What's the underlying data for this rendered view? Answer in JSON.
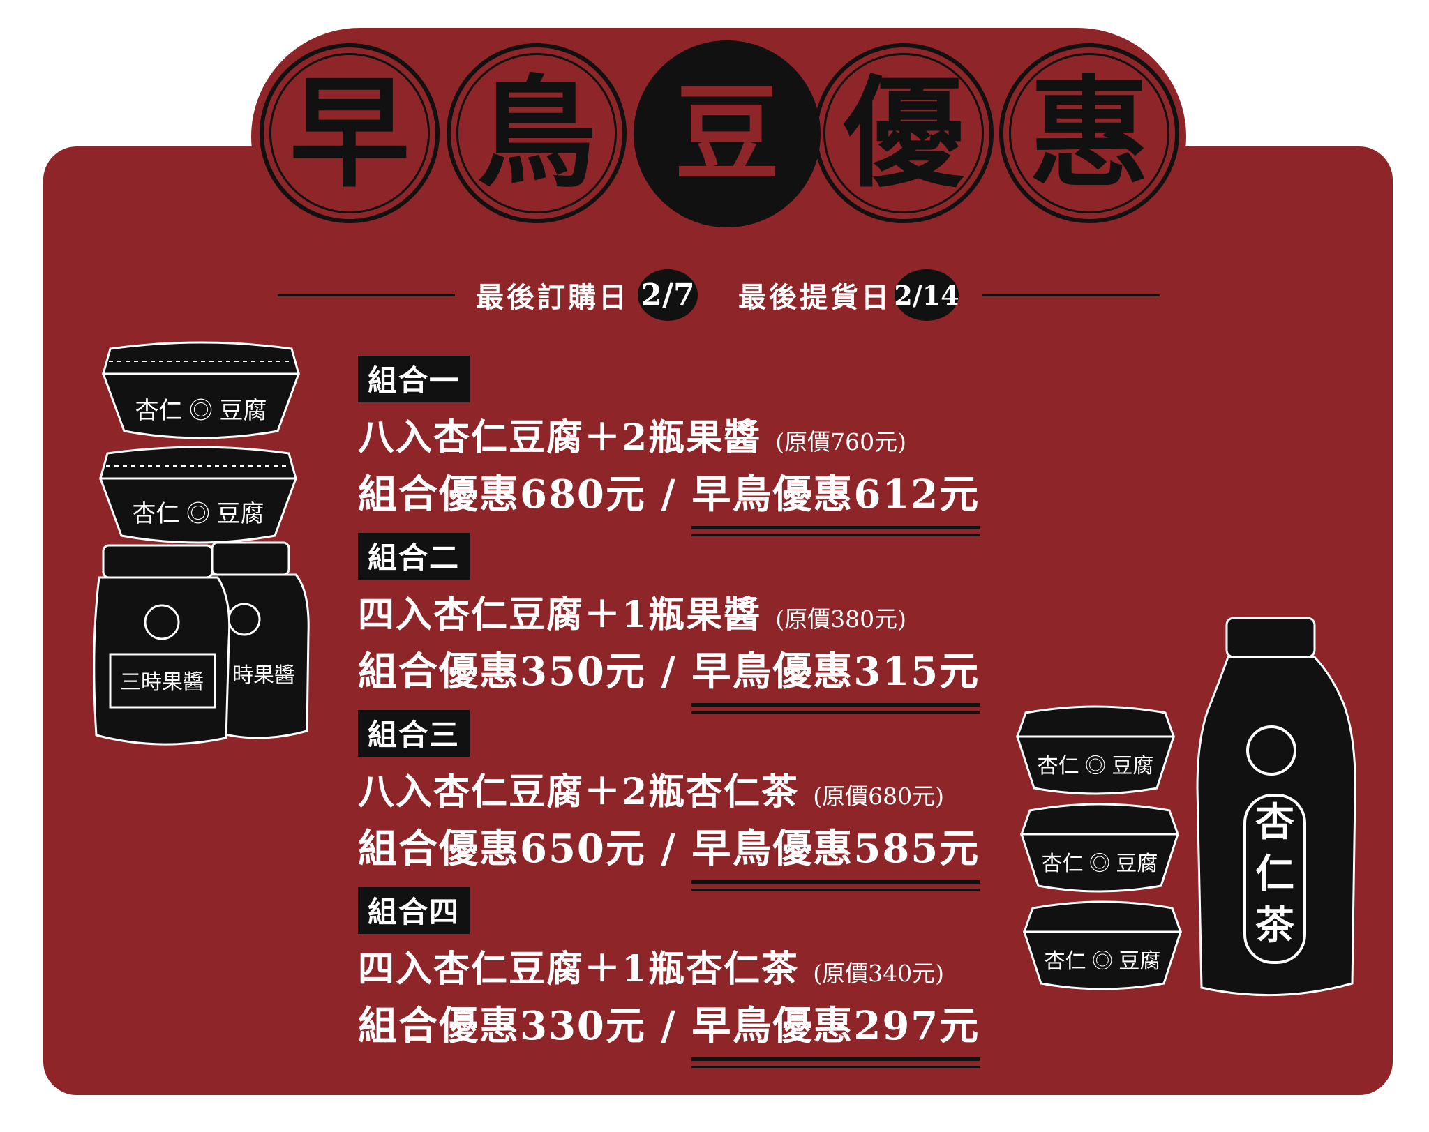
{
  "title": {
    "chars": [
      "早",
      "鳥",
      "豆",
      "優",
      "惠"
    ],
    "logo_char": "豆"
  },
  "dates": {
    "order_label": "最後訂購日",
    "order_date": "2/7",
    "pickup_label": "最後提貨日",
    "pickup_date": "2/14"
  },
  "combos": [
    {
      "tag": "組合一",
      "items": "八入杏仁豆腐＋2瓶果醬",
      "original": "(原價760元)",
      "combo_price": "組合優惠680元",
      "separator": " / ",
      "early_price": "早鳥優惠612元"
    },
    {
      "tag": "組合二",
      "items": "四入杏仁豆腐＋1瓶果醬",
      "original": "(原價380元)",
      "combo_price": "組合優惠350元",
      "separator": " / ",
      "early_price": "早鳥優惠315元"
    },
    {
      "tag": "組合三",
      "items": "八入杏仁豆腐＋2瓶杏仁茶",
      "original": "(原價680元)",
      "combo_price": "組合優惠650元",
      "separator": " / ",
      "early_price": "早鳥優惠585元"
    },
    {
      "tag": "組合四",
      "items": "四入杏仁豆腐＋1瓶杏仁茶",
      "original": "(原價340元)",
      "combo_price": "組合優惠330元",
      "separator": " / ",
      "early_price": "早鳥優惠297元"
    }
  ],
  "illustrations": {
    "tofu_label_a": "杏仁",
    "tofu_label_b": "豆腐",
    "jam_label_1": "三時果醬",
    "jam_label_2": "時果醬",
    "tea_label": [
      "杏",
      "仁",
      "茶"
    ]
  },
  "colors": {
    "background": "#8e2529",
    "ink": "#111111",
    "text": "#ffffff"
  }
}
